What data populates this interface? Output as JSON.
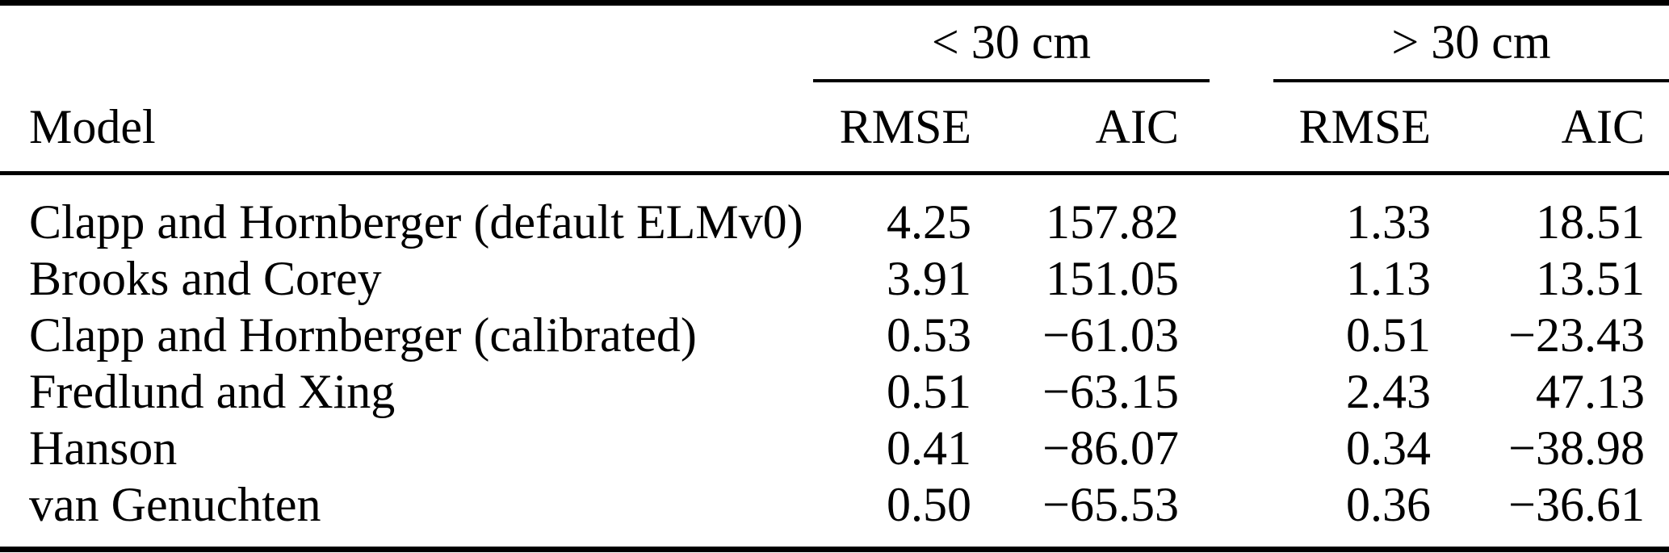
{
  "table": {
    "colors": {
      "text": "#000000",
      "rule": "#000000",
      "background": "#ffffff"
    },
    "col_groups": [
      {
        "label": "< 30 cm"
      },
      {
        "label": "> 30 cm"
      }
    ],
    "header": {
      "model": "Model",
      "sub": [
        "RMSE",
        "AIC",
        "RMSE",
        "AIC"
      ]
    },
    "rows": [
      {
        "model": "Clapp and Hornberger (default ELMv0)",
        "values": [
          "4.25",
          "157.82",
          "1.33",
          "18.51"
        ]
      },
      {
        "model": "Brooks and Corey",
        "values": [
          "3.91",
          "151.05",
          "1.13",
          "13.51"
        ]
      },
      {
        "model": "Clapp and Hornberger (calibrated)",
        "values": [
          "0.53",
          "−61.03",
          "0.51",
          "−23.43"
        ]
      },
      {
        "model": "Fredlund and Xing",
        "values": [
          "0.51",
          "−63.15",
          "2.43",
          "47.13"
        ]
      },
      {
        "model": "Hanson",
        "values": [
          "0.41",
          "−86.07",
          "0.34",
          "−38.98"
        ]
      },
      {
        "model": "van Genuchten",
        "values": [
          "0.50",
          "−65.53",
          "0.36",
          "−36.61"
        ]
      }
    ]
  }
}
